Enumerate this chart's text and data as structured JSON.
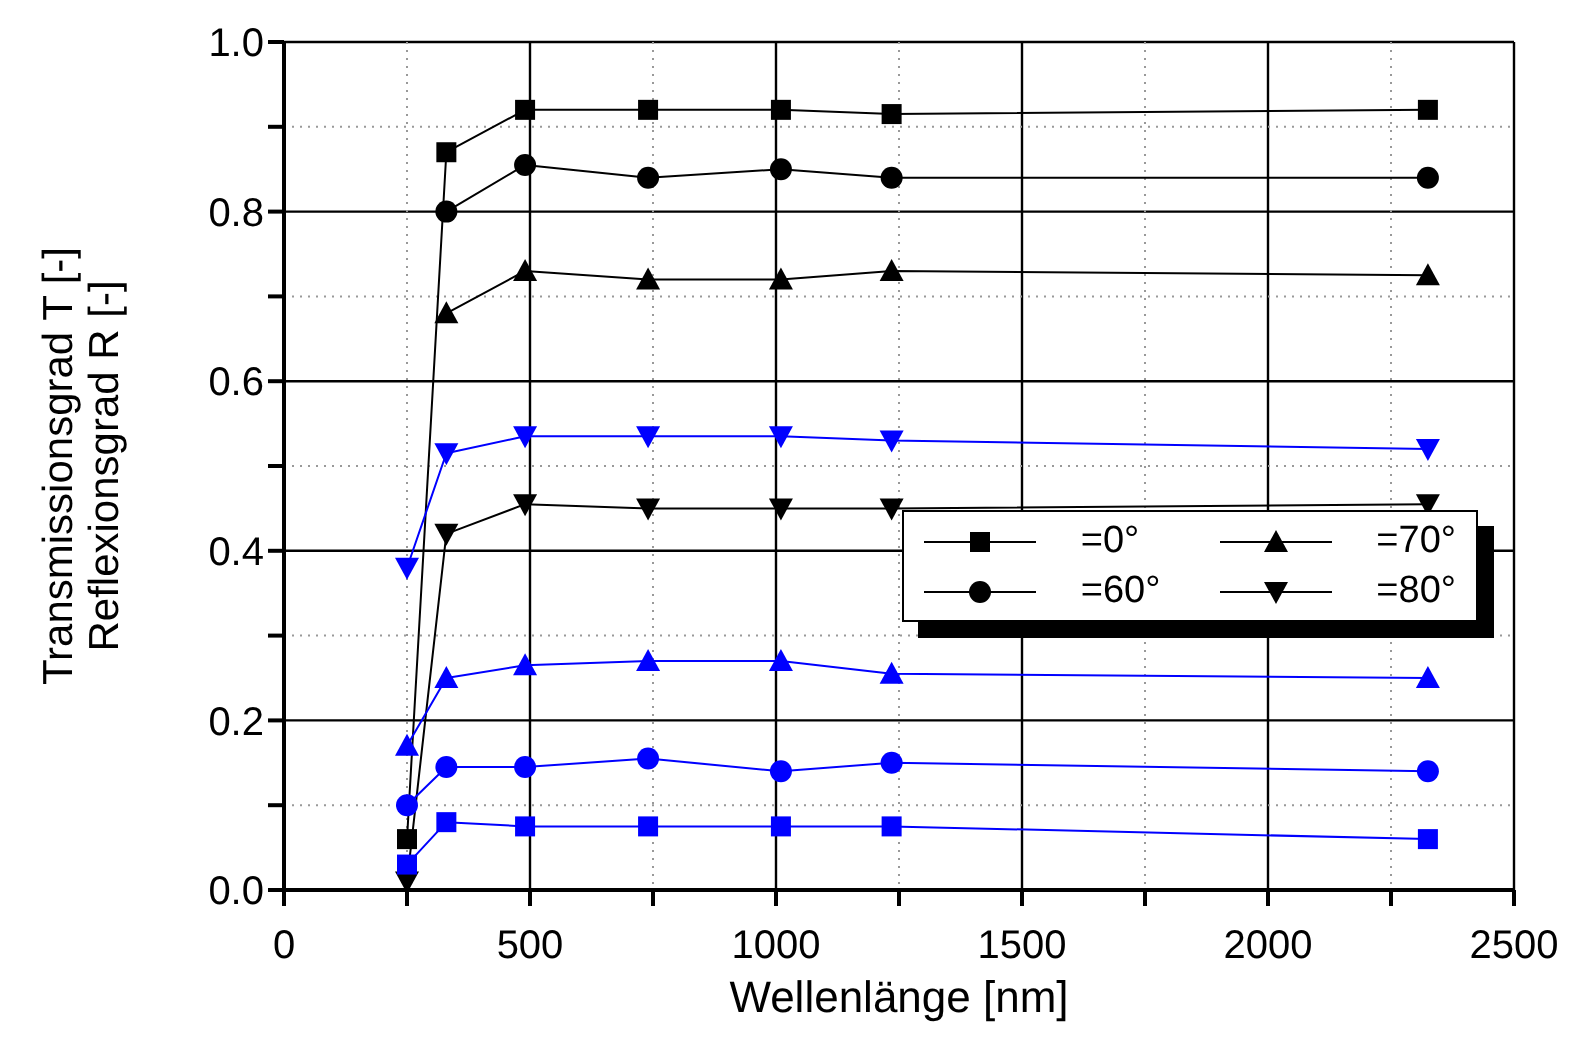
{
  "chart_data": {
    "type": "line",
    "xlabel": "Wellenlänge    [nm]",
    "ylabel": "Transmissionsgrad T [-]\nReflexionsgrad      R [-]",
    "x": [
      250,
      330,
      490,
      740,
      1010,
      1235,
      2325
    ],
    "series": [
      {
        "name": "=0°",
        "color": "#000000",
        "marker": "square",
        "values": [
          0.06,
          0.87,
          0.92,
          0.92,
          0.92,
          0.915,
          0.92
        ]
      },
      {
        "name": "=60°",
        "color": "#000000",
        "marker": "circle",
        "values": [
          null,
          0.8,
          0.855,
          0.84,
          0.85,
          0.84,
          0.84
        ]
      },
      {
        "name": "=70°",
        "color": "#000000",
        "marker": "triangle",
        "values": [
          null,
          0.68,
          0.73,
          0.72,
          0.72,
          0.73,
          0.725
        ]
      },
      {
        "name": "=80°",
        "color": "#000000",
        "marker": "triangle-down",
        "values": [
          0.01,
          0.42,
          0.455,
          0.45,
          0.45,
          0.45,
          0.455
        ]
      },
      {
        "color": "#0000ff",
        "marker": "square",
        "values": [
          0.03,
          0.08,
          0.075,
          0.075,
          0.075,
          0.075,
          0.06
        ]
      },
      {
        "color": "#0000ff",
        "marker": "circle",
        "values": [
          0.1,
          0.145,
          0.145,
          0.155,
          0.14,
          0.15,
          0.14
        ]
      },
      {
        "color": "#0000ff",
        "marker": "triangle",
        "values": [
          0.17,
          0.25,
          0.265,
          0.27,
          0.27,
          0.255,
          0.25
        ]
      },
      {
        "color": "#0000ff",
        "marker": "triangle-down",
        "values": [
          0.38,
          0.515,
          0.535,
          0.535,
          0.535,
          0.53,
          0.52
        ]
      }
    ],
    "xlim": [
      0,
      2500
    ],
    "xticks": [
      0,
      {
        "value": 250,
        "label": null
      },
      500,
      {
        "value": 750,
        "label": null
      },
      1000,
      {
        "value": 1250,
        "label": null
      },
      1500,
      {
        "value": 1750,
        "label": null
      },
      2000,
      {
        "value": 2250,
        "label": null
      },
      2500
    ],
    "ylim": [
      0,
      1
    ],
    "yticks": [
      {
        "value": 0,
        "label": "0.0"
      },
      {
        "value": 0.1,
        "label": null
      },
      {
        "value": 0.2,
        "label": "0.2"
      },
      {
        "value": 0.3,
        "label": null
      },
      {
        "value": 0.4,
        "label": "0.4"
      },
      {
        "value": 0.5,
        "label": null
      },
      {
        "value": 0.6,
        "label": "0.6"
      },
      {
        "value": 0.7,
        "label": null
      },
      {
        "value": 0.8,
        "label": "0.8"
      },
      {
        "value": 0.9,
        "label": null
      },
      {
        "value": 1,
        "label": "1.0"
      }
    ],
    "grid": true,
    "legend": "right"
  }
}
